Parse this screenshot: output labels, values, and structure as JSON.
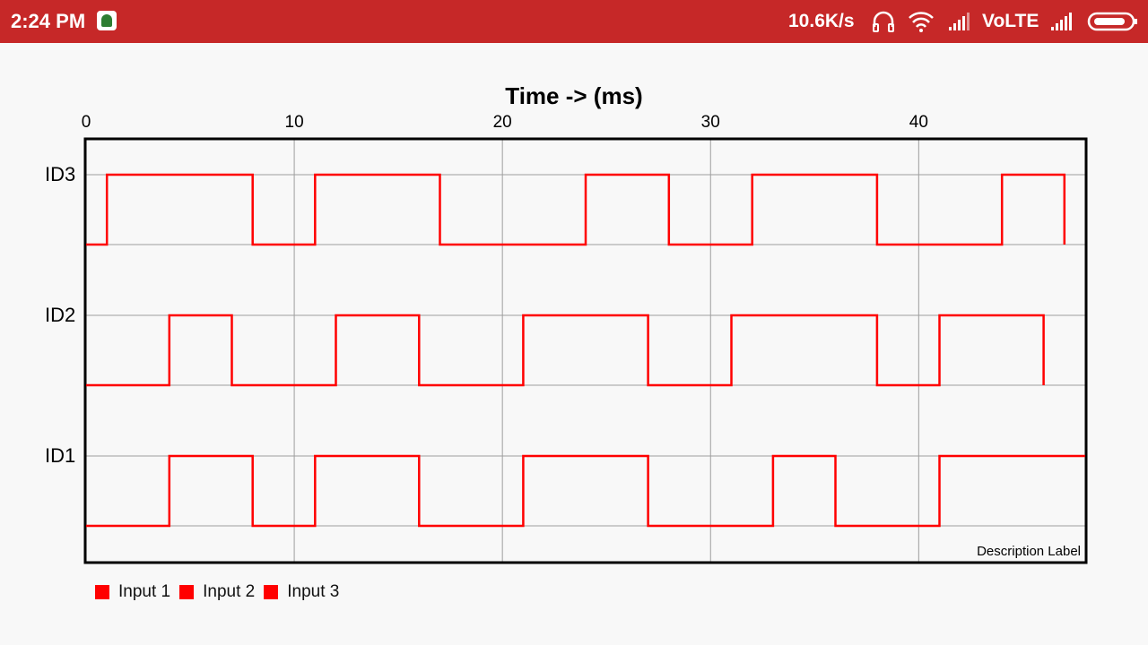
{
  "status_bar": {
    "time": "2:24 PM",
    "network_speed": "10.6K/s",
    "network_type": "VoLTE",
    "icons": [
      "app-icon",
      "headset-icon",
      "wifi-icon",
      "signal-icon",
      "signal-icon-2",
      "battery-icon"
    ]
  },
  "colors": {
    "status_bar": "#c62828",
    "series": "#ff0000",
    "grid": "#9e9e9e",
    "background": "#f8f8f8"
  },
  "chart_data": {
    "type": "line",
    "title": "Time -> (ms)",
    "xlabel": "Time -> (ms)",
    "xlim": [
      0,
      48
    ],
    "x_ticks": [
      "0",
      "10",
      "20",
      "30",
      "40"
    ],
    "y_ticks": [
      "ID3",
      "ID2",
      "ID1"
    ],
    "grid": true,
    "legend_placement": "bottom-left",
    "description": "Description Label",
    "series": [
      {
        "name": "Input 1",
        "row": "ID3",
        "x": [
          0,
          1,
          1,
          8,
          8,
          11,
          11,
          17,
          17,
          24,
          24,
          28,
          28,
          32,
          32,
          38,
          38,
          44,
          44,
          47,
          47
        ],
        "y": [
          0,
          0,
          1,
          1,
          0,
          0,
          1,
          1,
          0,
          0,
          1,
          1,
          0,
          0,
          1,
          1,
          0,
          0,
          1,
          1,
          0
        ]
      },
      {
        "name": "Input 2",
        "row": "ID2",
        "x": [
          0,
          4,
          4,
          7,
          7,
          12,
          12,
          16,
          16,
          21,
          21,
          27,
          27,
          31,
          31,
          38,
          38,
          41,
          41,
          46,
          46
        ],
        "y": [
          0,
          0,
          1,
          1,
          0,
          0,
          1,
          1,
          0,
          0,
          1,
          1,
          0,
          0,
          1,
          1,
          0,
          0,
          1,
          1,
          0
        ]
      },
      {
        "name": "Input 3",
        "row": "ID1",
        "x": [
          0,
          4,
          4,
          8,
          8,
          11,
          11,
          16,
          16,
          21,
          21,
          27,
          27,
          33,
          33,
          36,
          36,
          41,
          41,
          48
        ],
        "y": [
          0,
          0,
          1,
          1,
          0,
          0,
          1,
          1,
          0,
          0,
          1,
          1,
          0,
          0,
          1,
          1,
          0,
          0,
          1,
          1
        ]
      }
    ]
  }
}
